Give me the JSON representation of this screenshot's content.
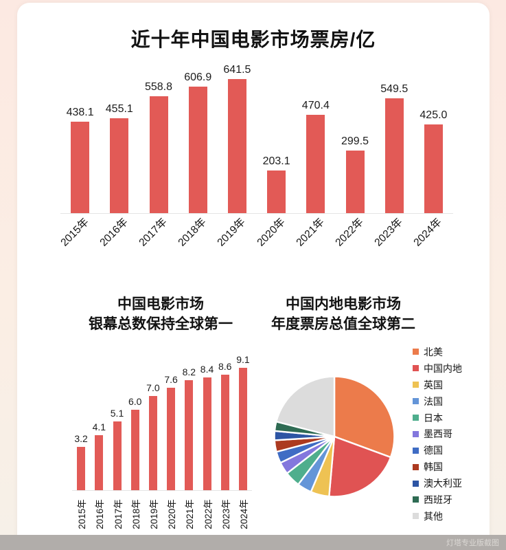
{
  "watermark": "灯塔专业版截图",
  "colors": {
    "bar": "#e25a56",
    "axis": "#e4e4e4",
    "card": "#ffffff",
    "background_top": "#fce9e2",
    "background_bottom": "#f6f0e8",
    "watermark_bar": "#b1adaa",
    "watermark_text": "#dbd8d4"
  },
  "chart_data": [
    {
      "type": "bar",
      "title": "近十年中国电影市场票房/亿",
      "categories": [
        "2015年",
        "2016年",
        "2017年",
        "2018年",
        "2019年",
        "2020年",
        "2021年",
        "2022年",
        "2023年",
        "2024年"
      ],
      "values": [
        438.1,
        455.1,
        558.8,
        606.9,
        641.5,
        203.1,
        470.4,
        299.5,
        549.5,
        425.0
      ],
      "bar_color": "#e25a56",
      "ylim": [
        0,
        660
      ],
      "value_labels": true,
      "xlabel_rotation_deg": -45
    },
    {
      "type": "bar",
      "title_lines": [
        "中国电影市场",
        "银幕总数保持全球第一"
      ],
      "categories": [
        "2015年",
        "2016年",
        "2017年",
        "2018年",
        "2019年",
        "2020年",
        "2021年",
        "2022年",
        "2023年",
        "2024年"
      ],
      "values": [
        3.2,
        4.1,
        5.1,
        6.0,
        7.0,
        7.6,
        8.2,
        8.4,
        8.6,
        9.1
      ],
      "bar_color": "#e25a56",
      "ylim": [
        0,
        9.5
      ],
      "value_labels": true,
      "xlabel_rotation_deg": -90
    },
    {
      "type": "pie",
      "title_lines": [
        "中国内地电影市场",
        "年度票房总值全球第二"
      ],
      "legend_position": "right",
      "start_angle_deg": 0,
      "clockwise": true,
      "slices": [
        {
          "label": "北美",
          "value": 30.6,
          "color": "#ec7b4b"
        },
        {
          "label": "中国内地",
          "value": 20.8,
          "color": "#e05353"
        },
        {
          "label": "英国",
          "value": 5.0,
          "color": "#eec253"
        },
        {
          "label": "法国",
          "value": 3.9,
          "color": "#6495d8"
        },
        {
          "label": "日本",
          "value": 4.2,
          "color": "#4fae8d"
        },
        {
          "label": "墨西哥",
          "value": 3.3,
          "color": "#8377dd"
        },
        {
          "label": "德国",
          "value": 3.1,
          "color": "#3f6cc4"
        },
        {
          "label": "韩国",
          "value": 3.1,
          "color": "#ac3a20"
        },
        {
          "label": "澳大利亚",
          "value": 2.5,
          "color": "#2d55a4"
        },
        {
          "label": "西班牙",
          "value": 2.5,
          "color": "#2e6b53"
        },
        {
          "label": "其他",
          "value": 21.0,
          "color": "#dcdcdc"
        }
      ]
    }
  ]
}
